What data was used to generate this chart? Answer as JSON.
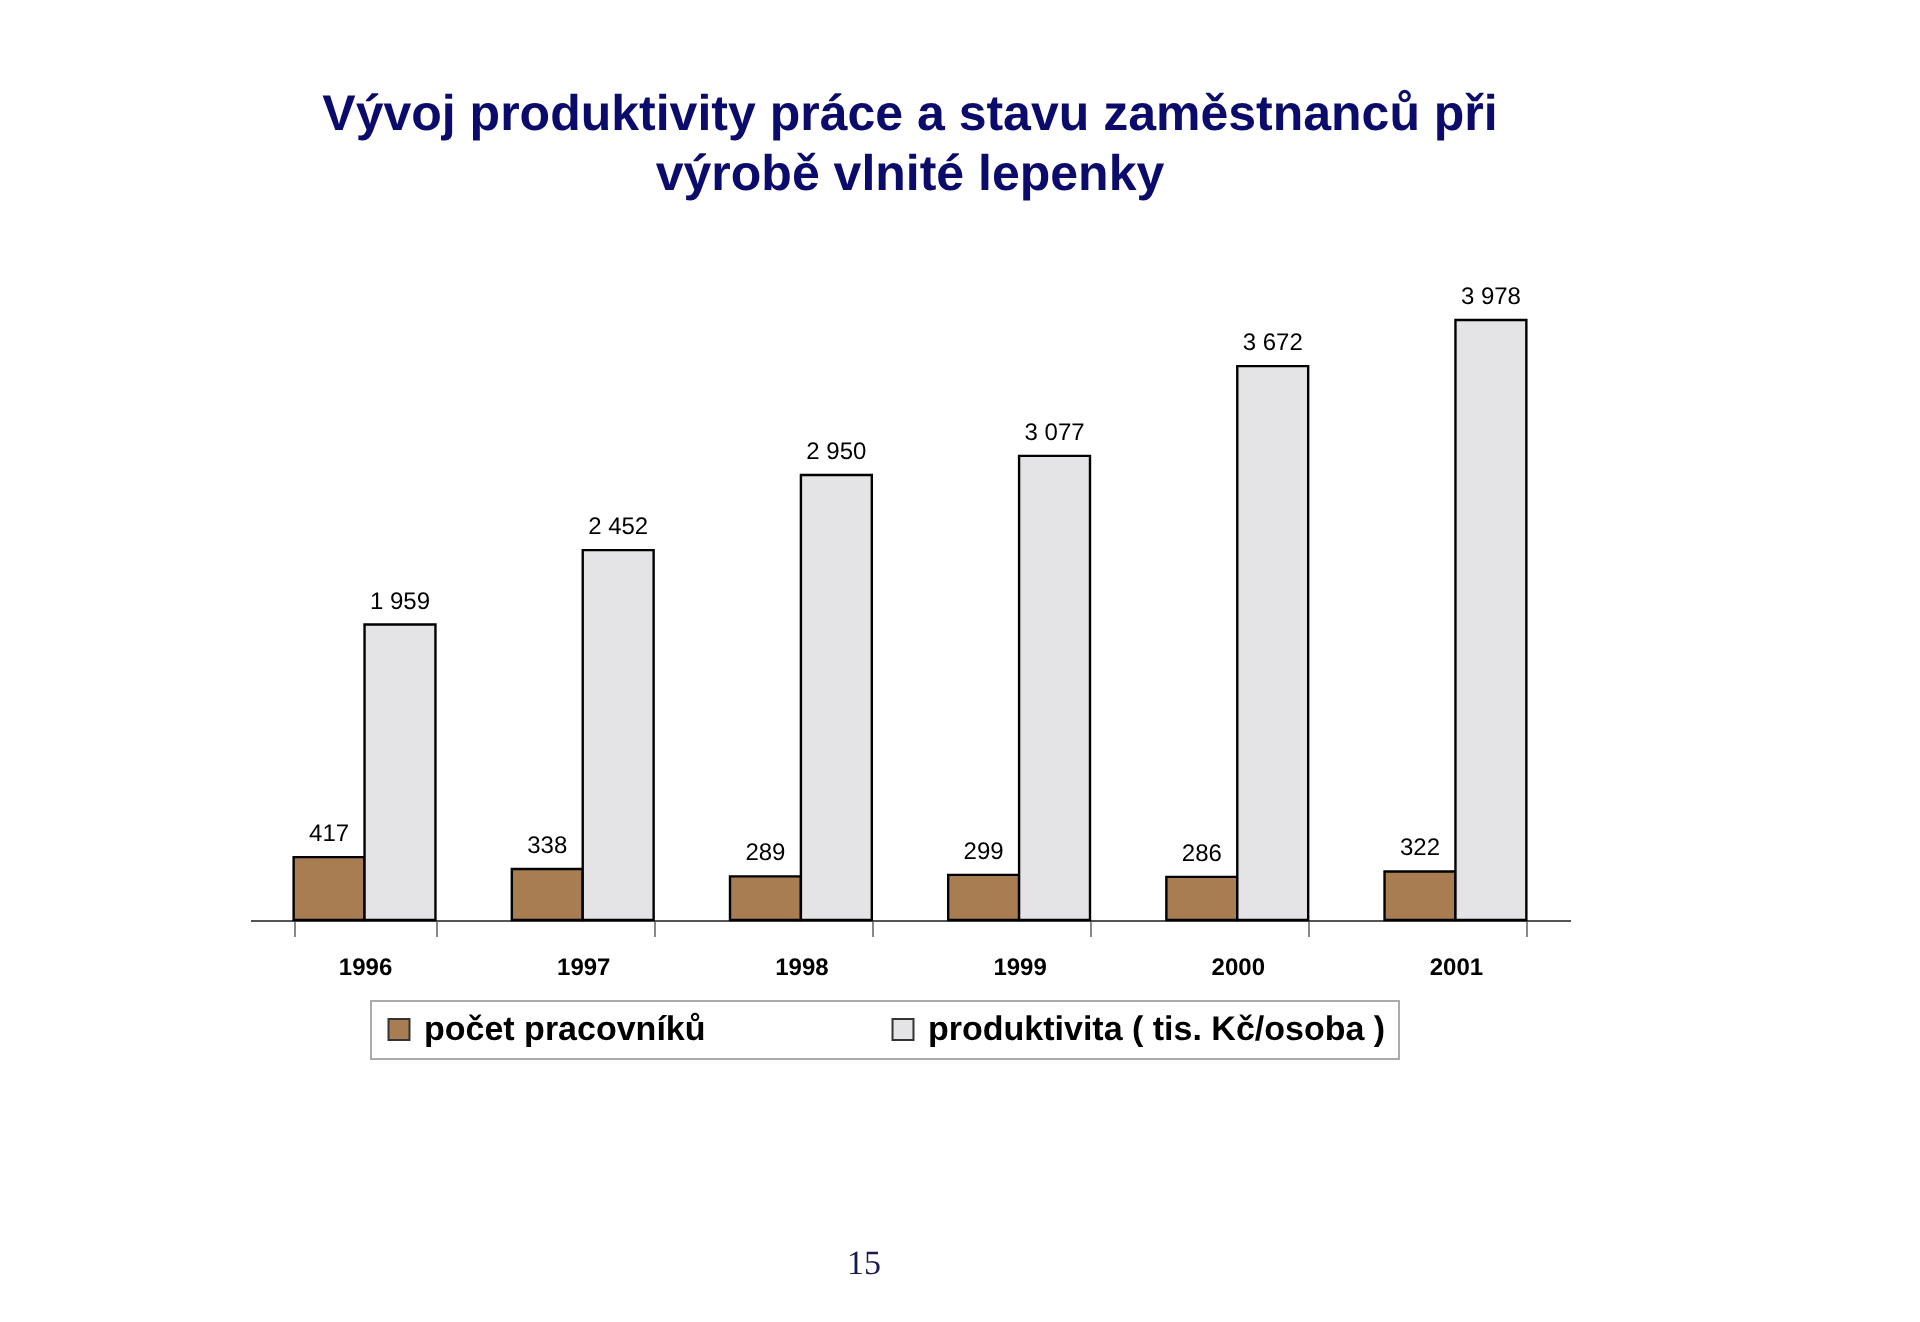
{
  "chart_data": {
    "type": "bar",
    "title": "Vývoj produktivity práce a stavu zaměstnanců při výrobě vlnité lepenky",
    "categories": [
      "1996",
      "1997",
      "1998",
      "1999",
      "2000",
      "2001"
    ],
    "series": [
      {
        "name": "počet pracovníků",
        "color": "#a87d52",
        "values": [
          417,
          338,
          289,
          299,
          286,
          322
        ],
        "value_labels": [
          "417",
          "338",
          "289",
          "299",
          "286",
          "322"
        ]
      },
      {
        "name": "produktivita ( tis. Kč/osoba )",
        "color": "#e4e4e6",
        "values": [
          1959,
          2452,
          2950,
          3077,
          3672,
          3978
        ],
        "value_labels": [
          "1 959",
          "2 452",
          "2 950",
          "3 077",
          "3 672",
          "3 978"
        ]
      }
    ],
    "grid": false,
    "legend": "bottom",
    "annotations": [
      "15"
    ]
  }
}
